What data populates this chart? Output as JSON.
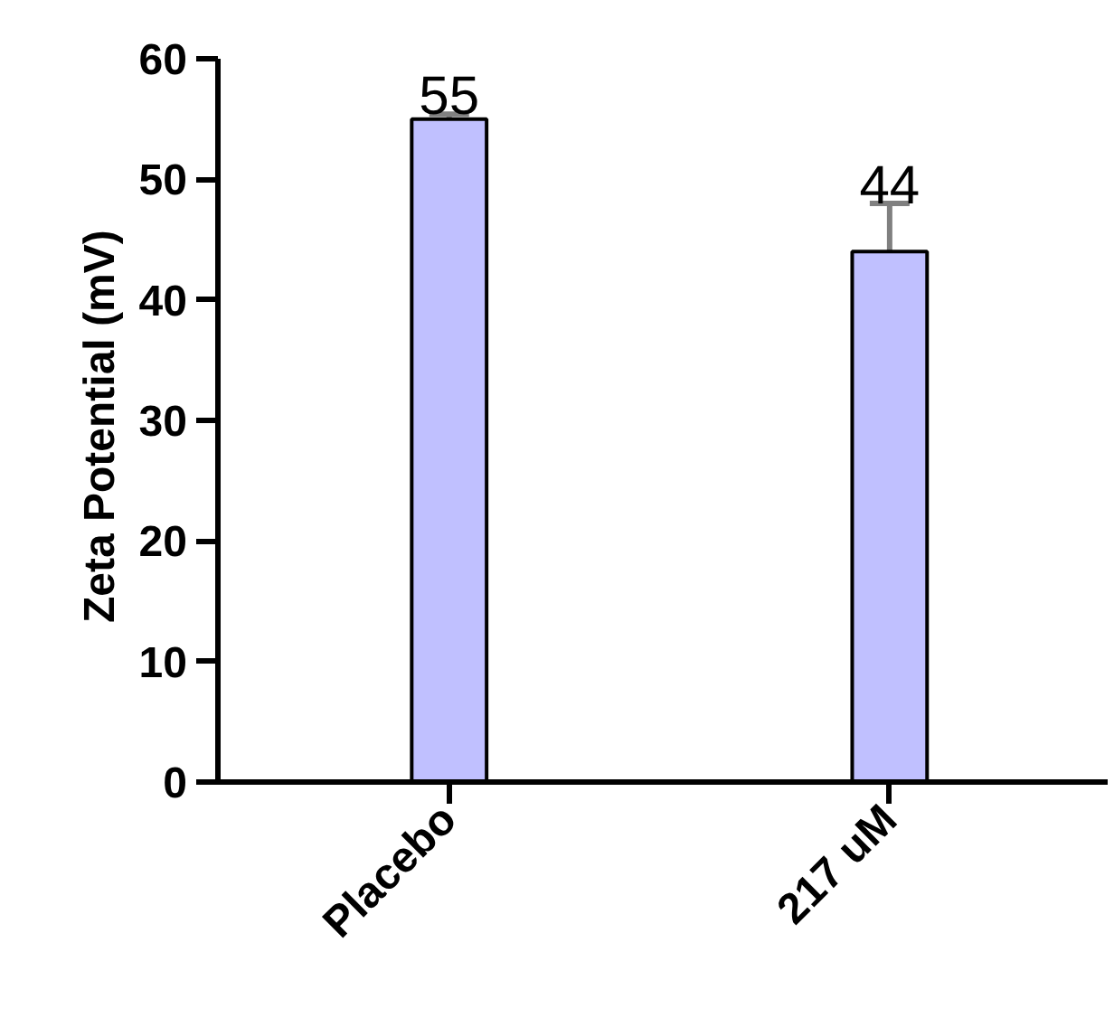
{
  "chart_data": {
    "type": "bar",
    "ylabel": "Zeta Potential  (mV)",
    "categories": [
      "Placebo",
      "217 uM"
    ],
    "values": [
      55,
      44
    ],
    "errors": [
      [
        55,
        55.4
      ],
      [
        44,
        48
      ]
    ],
    "data_labels": true,
    "color": "#c0c0ff",
    "ylim": [
      0,
      60
    ],
    "yticks": [
      0,
      10,
      20,
      30,
      40,
      50,
      60
    ],
    "grid": false
  }
}
